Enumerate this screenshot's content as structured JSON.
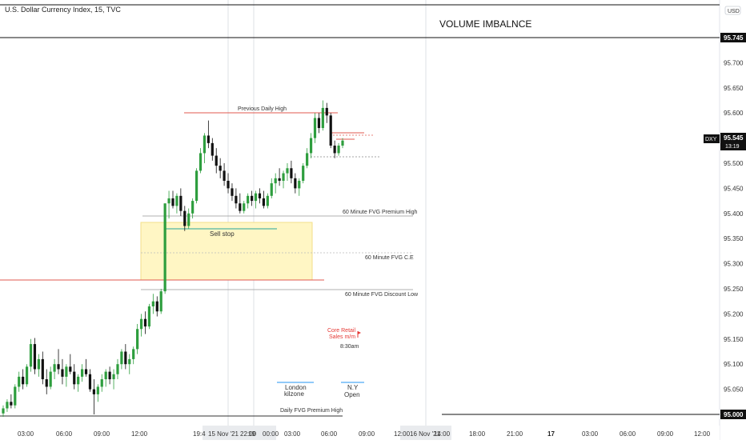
{
  "symbol_title": "U.S. Dollar Currency Index, 15, TVC",
  "chart_title": "VOLUME IMBALNCE",
  "currency_button": "USD",
  "colors": {
    "up": "#26a69a",
    "up_fill": "#2e9e3e",
    "down": "#111111",
    "red_line": "#e05a4f",
    "zone": "#fff6c4",
    "zone_border": "#f3df8a",
    "sell_stop": "#26a69a",
    "annot_red": "#e53935",
    "blue_line": "#2196f3"
  },
  "chart_data": {
    "type": "candlestick",
    "y_ticks": [
      "95.750",
      "95.700",
      "95.650",
      "95.600",
      "95.550",
      "95.500",
      "95.450",
      "95.400",
      "95.350",
      "95.300",
      "95.250",
      "95.200",
      "95.150",
      "95.100",
      "95.050",
      "95.000"
    ],
    "ylim": [
      94.985,
      95.8
    ],
    "x_ticks": [
      "03:00",
      "06:00",
      "09:00",
      "12:00",
      "19:4",
      "15 Nov '21",
      "22:00",
      "19",
      "00:00",
      "03:00",
      "06:00",
      "09:00",
      "12:00",
      "16 Nov '21",
      "14:00",
      "18:00",
      "21:00",
      "17",
      "03:00",
      "06:00",
      "09:00",
      "12:00"
    ],
    "price_badges": [
      {
        "label": "95.745",
        "value": 95.745
      },
      {
        "label": "95.000",
        "value": 95.0
      },
      {
        "label": "95.545",
        "value": 95.545,
        "sub": "13:19",
        "tag": "DXY"
      }
    ],
    "levels": [
      {
        "label": "Previous Daily High",
        "value": 95.593
      },
      {
        "label": "60 Minute FVG Premium High",
        "value": 95.402
      },
      {
        "label": "60 Minute FVG C.E",
        "value": 95.317
      },
      {
        "label": "60 Minute FVG Discount Low",
        "value": 95.244
      },
      {
        "label": "Daily FVG Premium High",
        "value": 95.0
      }
    ],
    "zone_labels": [
      "Sell stop"
    ],
    "annotations": [
      {
        "label": "Core Retail",
        "line2": "Sales m/m",
        "time": "8:30am"
      },
      {
        "label": "London",
        "line2": "kilzone"
      },
      {
        "label": "N.Y",
        "line2": "Open"
      }
    ],
    "candles": [
      [
        95.002,
        95.018,
        94.995,
        95.012
      ],
      [
        95.012,
        95.03,
        95.005,
        95.025
      ],
      [
        95.025,
        95.04,
        95.012,
        95.018
      ],
      [
        95.018,
        95.06,
        95.012,
        95.055
      ],
      [
        95.055,
        95.085,
        95.045,
        95.075
      ],
      [
        95.075,
        95.09,
        95.05,
        95.06
      ],
      [
        95.06,
        95.1,
        95.055,
        95.095
      ],
      [
        95.095,
        95.15,
        95.085,
        95.14
      ],
      [
        95.14,
        95.152,
        95.08,
        95.09
      ],
      [
        95.09,
        95.12,
        95.075,
        95.11
      ],
      [
        95.11,
        95.125,
        95.06,
        95.07
      ],
      [
        95.07,
        95.09,
        95.04,
        95.055
      ],
      [
        95.055,
        95.095,
        95.05,
        95.085
      ],
      [
        95.085,
        95.11,
        95.07,
        95.1
      ],
      [
        95.1,
        95.13,
        95.08,
        95.09
      ],
      [
        95.09,
        95.11,
        95.06,
        95.075
      ],
      [
        95.075,
        95.1,
        95.055,
        95.095
      ],
      [
        95.095,
        95.12,
        95.08,
        95.085
      ],
      [
        95.085,
        95.1,
        95.05,
        95.06
      ],
      [
        95.06,
        95.08,
        95.045,
        95.075
      ],
      [
        95.075,
        95.1,
        95.065,
        95.09
      ],
      [
        95.09,
        95.11,
        95.075,
        95.08
      ],
      [
        95.08,
        95.09,
        95.045,
        95.05
      ],
      [
        95.05,
        95.07,
        95.0,
        95.04
      ],
      [
        95.04,
        95.06,
        95.025,
        95.055
      ],
      [
        95.055,
        95.08,
        95.045,
        95.07
      ],
      [
        95.07,
        95.09,
        95.055,
        95.085
      ],
      [
        95.085,
        95.095,
        95.06,
        95.07
      ],
      [
        95.07,
        95.09,
        95.05,
        95.08
      ],
      [
        95.08,
        95.11,
        95.07,
        95.1
      ],
      [
        95.1,
        95.13,
        95.09,
        95.125
      ],
      [
        95.125,
        95.14,
        95.09,
        95.1
      ],
      [
        95.1,
        95.12,
        95.08,
        95.11
      ],
      [
        95.11,
        95.135,
        95.1,
        95.13
      ],
      [
        95.13,
        95.18,
        95.12,
        95.17
      ],
      [
        95.17,
        95.2,
        95.155,
        95.19
      ],
      [
        95.19,
        95.205,
        95.16,
        95.175
      ],
      [
        95.175,
        95.22,
        95.17,
        95.215
      ],
      [
        95.215,
        95.24,
        95.2,
        95.225
      ],
      [
        95.225,
        95.235,
        95.195,
        95.205
      ],
      [
        95.205,
        95.25,
        95.2,
        95.245
      ],
      [
        95.245,
        95.42,
        95.24,
        95.42
      ],
      [
        95.42,
        95.445,
        95.39,
        95.43
      ],
      [
        95.43,
        95.445,
        95.41,
        95.415
      ],
      [
        95.415,
        95.44,
        95.4,
        95.435
      ],
      [
        95.435,
        95.45,
        95.395,
        95.405
      ],
      [
        95.405,
        95.415,
        95.365,
        95.375
      ],
      [
        95.375,
        95.41,
        95.37,
        95.4
      ],
      [
        95.4,
        95.43,
        95.39,
        95.425
      ],
      [
        95.425,
        95.49,
        95.42,
        95.485
      ],
      [
        95.485,
        95.53,
        95.48,
        95.52
      ],
      [
        95.52,
        95.56,
        95.5,
        95.555
      ],
      [
        95.555,
        95.585,
        95.53,
        95.54
      ],
      [
        95.54,
        95.55,
        95.505,
        95.515
      ],
      [
        95.515,
        95.53,
        95.48,
        95.495
      ],
      [
        95.495,
        95.51,
        95.47,
        95.485
      ],
      [
        95.485,
        95.5,
        95.455,
        95.465
      ],
      [
        95.465,
        95.48,
        95.44,
        95.45
      ],
      [
        95.45,
        95.46,
        95.425,
        95.435
      ],
      [
        95.435,
        95.45,
        95.41,
        95.42
      ],
      [
        95.42,
        95.44,
        95.4,
        95.405
      ],
      [
        95.405,
        95.425,
        95.4,
        95.42
      ],
      [
        95.42,
        95.44,
        95.41,
        95.435
      ],
      [
        95.435,
        95.445,
        95.415,
        95.425
      ],
      [
        95.425,
        95.445,
        95.41,
        95.44
      ],
      [
        95.44,
        95.45,
        95.42,
        95.43
      ],
      [
        95.43,
        95.445,
        95.41,
        95.415
      ],
      [
        95.415,
        95.44,
        95.41,
        95.435
      ],
      [
        95.435,
        95.47,
        95.43,
        95.46
      ],
      [
        95.46,
        95.48,
        95.44,
        95.47
      ],
      [
        95.47,
        95.49,
        95.455,
        95.465
      ],
      [
        95.465,
        95.485,
        95.45,
        95.48
      ],
      [
        95.48,
        95.5,
        95.465,
        95.49
      ],
      [
        95.49,
        95.505,
        95.46,
        95.47
      ],
      [
        95.47,
        95.48,
        95.44,
        95.45
      ],
      [
        95.45,
        95.47,
        95.435,
        95.465
      ],
      [
        95.465,
        95.5,
        95.46,
        95.495
      ],
      [
        95.495,
        95.53,
        95.49,
        95.52
      ],
      [
        95.52,
        95.56,
        95.51,
        95.55
      ],
      [
        95.55,
        95.6,
        95.54,
        95.59
      ],
      [
        95.59,
        95.6,
        95.56,
        95.57
      ],
      [
        95.57,
        95.625,
        95.565,
        95.61
      ],
      [
        95.61,
        95.62,
        95.58,
        95.595
      ],
      [
        95.595,
        95.6,
        95.53,
        95.535
      ],
      [
        95.535,
        95.545,
        95.51,
        95.52
      ],
      [
        95.52,
        95.54,
        95.515,
        95.535
      ],
      [
        95.535,
        95.55,
        95.53,
        95.545
      ]
    ]
  }
}
